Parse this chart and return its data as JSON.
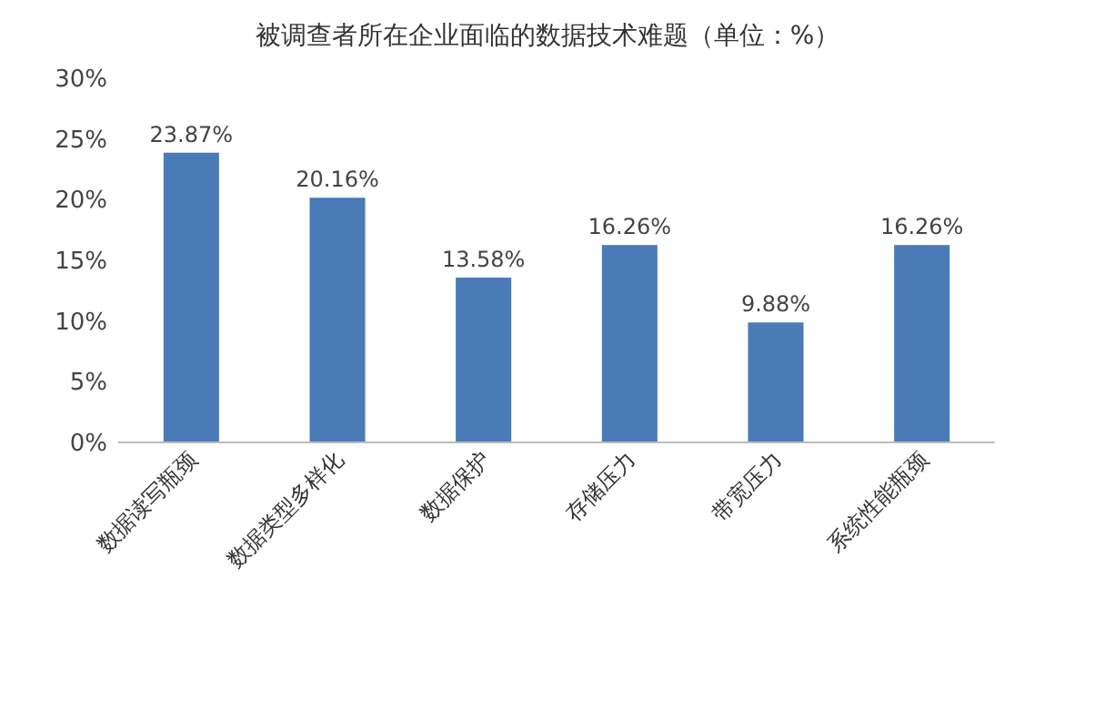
{
  "chart_data": {
    "type": "bar",
    "title": "被调查者所在企业面临的数据技术难题（单位：%）",
    "categories": [
      "数据读写瓶颈",
      "数据类型多样化",
      "数据保护",
      "存储压力",
      "带宽压力",
      "系统性能瓶颈"
    ],
    "values": [
      23.87,
      20.16,
      13.58,
      16.26,
      9.88,
      16.26
    ],
    "value_labels": [
      "23.87%",
      "20.16%",
      "13.58%",
      "16.26%",
      "9.88%",
      "16.26%"
    ],
    "color": "#4a7bb7",
    "ylim": [
      0,
      30
    ],
    "yticks": [
      {
        "value": 0,
        "label": "0%"
      },
      {
        "value": 5,
        "label": "5%"
      },
      {
        "value": 10,
        "label": "10%"
      },
      {
        "value": 15,
        "label": "15%"
      },
      {
        "value": 20,
        "label": "20%"
      },
      {
        "value": 25,
        "label": "25%"
      },
      {
        "value": 30,
        "label": "30%"
      }
    ],
    "grid": false
  }
}
